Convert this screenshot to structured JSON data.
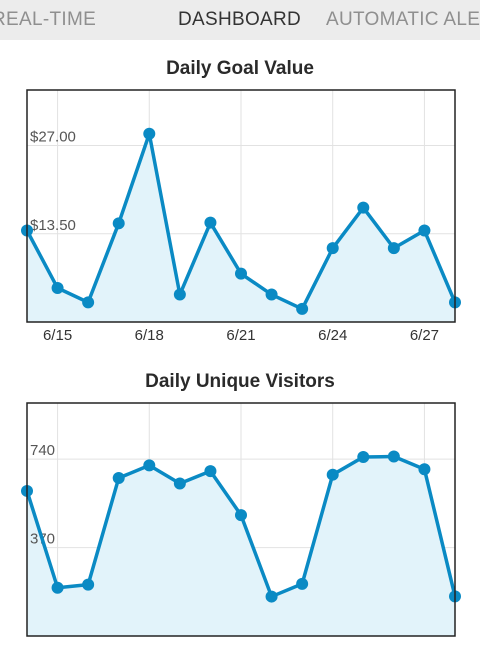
{
  "tabs": [
    {
      "label": "REAL-TIME",
      "active": false
    },
    {
      "label": "DASHBOARD",
      "active": true
    },
    {
      "label": "AUTOMATIC ALERTS",
      "active": false
    }
  ],
  "colors": {
    "line": "#0a8ac4",
    "fill": "#e2f3fa",
    "grid": "#e2e2e2",
    "frame": "#222222",
    "tabbar": "#ececec"
  },
  "chart_data": [
    {
      "type": "area",
      "title": "Daily Goal Value",
      "x": [
        "6/14",
        "6/15",
        "6/16",
        "6/17",
        "6/18",
        "6/19",
        "6/20",
        "6/21",
        "6/22",
        "6/23",
        "6/24",
        "6/25",
        "6/26",
        "6/27",
        "6/28"
      ],
      "x_ticks": [
        "6/15",
        "6/18",
        "6/21",
        "6/24",
        "6/27"
      ],
      "y_ticks": [
        "$13.50",
        "$27.00"
      ],
      "y_tick_values": [
        13.5,
        27
      ],
      "ylim": [
        0,
        35.5
      ],
      "series": [
        {
          "values": [
            14.0,
            5.2,
            3.0,
            15.1,
            28.8,
            4.2,
            15.2,
            7.4,
            4.2,
            2.0,
            11.3,
            17.5,
            11.3,
            14.0,
            3.0
          ]
        }
      ],
      "grid": true
    },
    {
      "type": "area",
      "title": "Daily Unique Visitors",
      "x": [
        "6/14",
        "6/15",
        "6/16",
        "6/17",
        "6/18",
        "6/19",
        "6/20",
        "6/21",
        "6/22",
        "6/23",
        "6/24",
        "6/25",
        "6/26",
        "6/27",
        "6/28"
      ],
      "x_ticks": [],
      "y_ticks": [
        "370",
        "740"
      ],
      "y_tick_values": [
        370,
        740
      ],
      "ylim": [
        0,
        975
      ],
      "series": [
        {
          "values": [
            607,
            202,
            215,
            661,
            714,
            638,
            690,
            506,
            165,
            218,
            675,
            749,
            751,
            698,
            166
          ]
        }
      ],
      "grid": true
    }
  ]
}
